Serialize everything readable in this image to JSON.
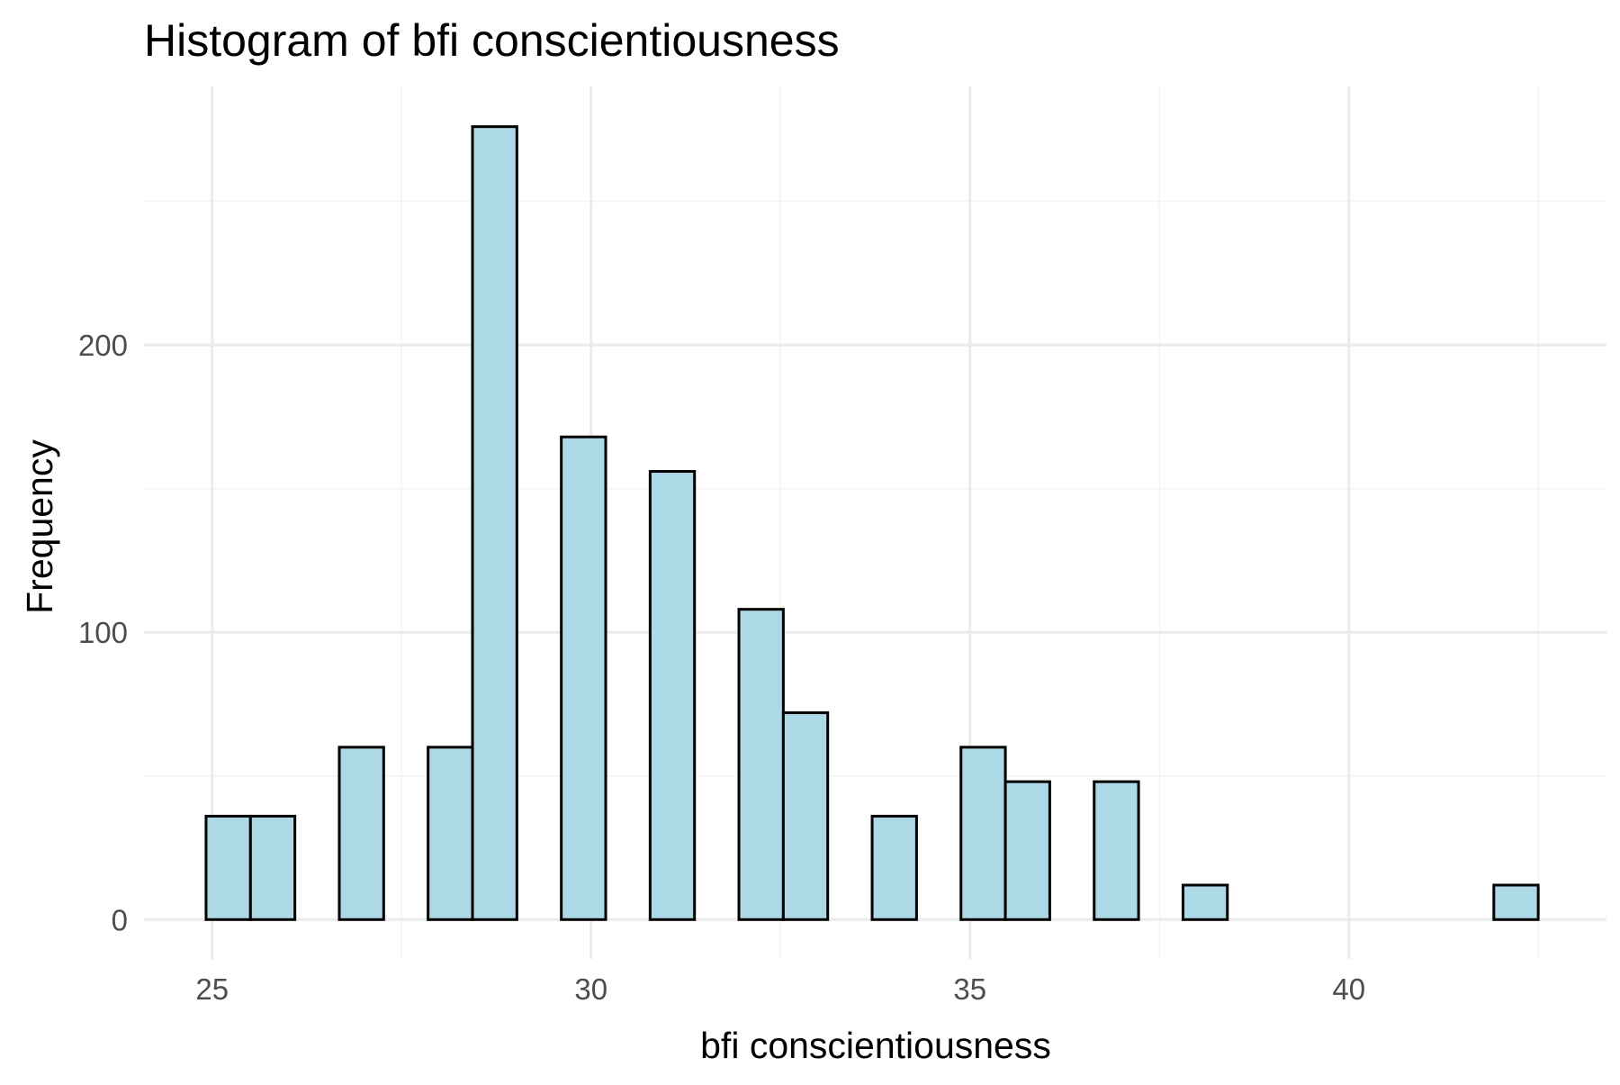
{
  "chart_data": {
    "type": "bar",
    "title": "Histogram of bfi conscientiousness",
    "xlabel": "bfi conscientiousness",
    "ylabel": "Frequency",
    "x_ticks": [
      25,
      30,
      35,
      40
    ],
    "y_ticks": [
      0,
      100,
      200
    ],
    "xlim": [
      24.1,
      43.4
    ],
    "ylim": [
      -13.7,
      290
    ],
    "bin_width": 0.586,
    "bin_start": 24.919,
    "grid": true,
    "legend": "none",
    "bar_fill": "#add8e6",
    "bar_outline": "#000000",
    "bins": [
      {
        "x_start": 24.919,
        "x_end": 25.505,
        "count": 36
      },
      {
        "x_start": 25.505,
        "x_end": 26.091,
        "count": 36
      },
      {
        "x_start": 26.091,
        "x_end": 26.677,
        "count": 0
      },
      {
        "x_start": 26.677,
        "x_end": 27.263,
        "count": 60
      },
      {
        "x_start": 27.263,
        "x_end": 27.849,
        "count": 0
      },
      {
        "x_start": 27.849,
        "x_end": 28.435,
        "count": 60
      },
      {
        "x_start": 28.435,
        "x_end": 29.021,
        "count": 276
      },
      {
        "x_start": 29.021,
        "x_end": 29.607,
        "count": 0
      },
      {
        "x_start": 29.607,
        "x_end": 30.193,
        "count": 168
      },
      {
        "x_start": 30.193,
        "x_end": 30.779,
        "count": 0
      },
      {
        "x_start": 30.779,
        "x_end": 31.365,
        "count": 156
      },
      {
        "x_start": 31.365,
        "x_end": 31.951,
        "count": 0
      },
      {
        "x_start": 31.951,
        "x_end": 32.537,
        "count": 108
      },
      {
        "x_start": 32.537,
        "x_end": 33.123,
        "count": 72
      },
      {
        "x_start": 33.123,
        "x_end": 33.709,
        "count": 0
      },
      {
        "x_start": 33.709,
        "x_end": 34.295,
        "count": 36
      },
      {
        "x_start": 34.295,
        "x_end": 34.881,
        "count": 0
      },
      {
        "x_start": 34.881,
        "x_end": 35.467,
        "count": 60
      },
      {
        "x_start": 35.467,
        "x_end": 36.053,
        "count": 48
      },
      {
        "x_start": 36.053,
        "x_end": 36.639,
        "count": 0
      },
      {
        "x_start": 36.639,
        "x_end": 37.225,
        "count": 48
      },
      {
        "x_start": 37.225,
        "x_end": 37.811,
        "count": 0
      },
      {
        "x_start": 37.811,
        "x_end": 38.397,
        "count": 12
      },
      {
        "x_start": 38.397,
        "x_end": 38.983,
        "count": 0
      },
      {
        "x_start": 38.983,
        "x_end": 39.569,
        "count": 0
      },
      {
        "x_start": 39.569,
        "x_end": 40.155,
        "count": 0
      },
      {
        "x_start": 40.155,
        "x_end": 40.741,
        "count": 0
      },
      {
        "x_start": 40.741,
        "x_end": 41.327,
        "count": 0
      },
      {
        "x_start": 41.327,
        "x_end": 41.913,
        "count": 0
      },
      {
        "x_start": 41.913,
        "x_end": 42.499,
        "count": 12
      }
    ]
  }
}
